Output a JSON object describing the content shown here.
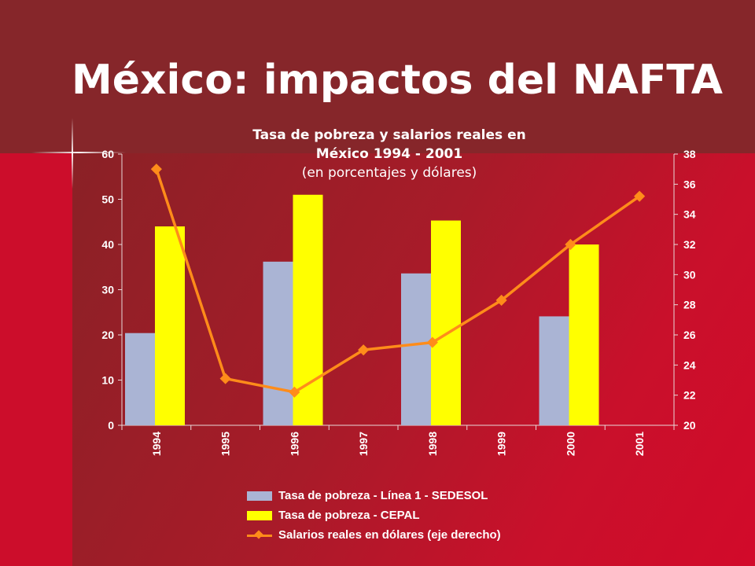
{
  "slide": {
    "title": "México: impactos del NAFTA",
    "colors": {
      "background_dark": "#86262a",
      "background_bright": "#cc0d2b",
      "text": "#ffffff"
    }
  },
  "chart_data": {
    "type": "bar",
    "title_line1": "Tasa de pobreza y salarios reales en",
    "title_line2": "México 1994 - 2001",
    "subtitle": "(en porcentajes y dólares)",
    "categories": [
      "1994",
      "1995",
      "1996",
      "1997",
      "1998",
      "1999",
      "2000",
      "2001"
    ],
    "left_axis": {
      "ylim": [
        0,
        60
      ],
      "ticks": [
        "0",
        "10",
        "20",
        "30",
        "40",
        "50",
        "60"
      ]
    },
    "right_axis": {
      "ylim": [
        20,
        38
      ],
      "ticks": [
        "20",
        "22",
        "24",
        "26",
        "28",
        "30",
        "32",
        "34",
        "36",
        "38"
      ]
    },
    "series": [
      {
        "name": "Tasa de pobreza - Línea 1 - SEDESOL",
        "type": "bar",
        "axis": "left",
        "color": "#aab4d4",
        "values": [
          20.4,
          null,
          36.2,
          null,
          33.6,
          null,
          24.1,
          null
        ]
      },
      {
        "name": "Tasa de pobreza - CEPAL",
        "type": "bar",
        "axis": "left",
        "color": "#ffff00",
        "values": [
          44.0,
          null,
          51.0,
          null,
          45.3,
          null,
          40.0,
          null
        ]
      },
      {
        "name": "Salarios reales en dólares (eje derecho)",
        "type": "line",
        "axis": "right",
        "color": "#ff8c1a",
        "values": [
          37.0,
          23.1,
          22.2,
          25.0,
          25.5,
          28.3,
          32.0,
          35.2
        ]
      }
    ],
    "grid": false,
    "legend_position": "bottom"
  }
}
